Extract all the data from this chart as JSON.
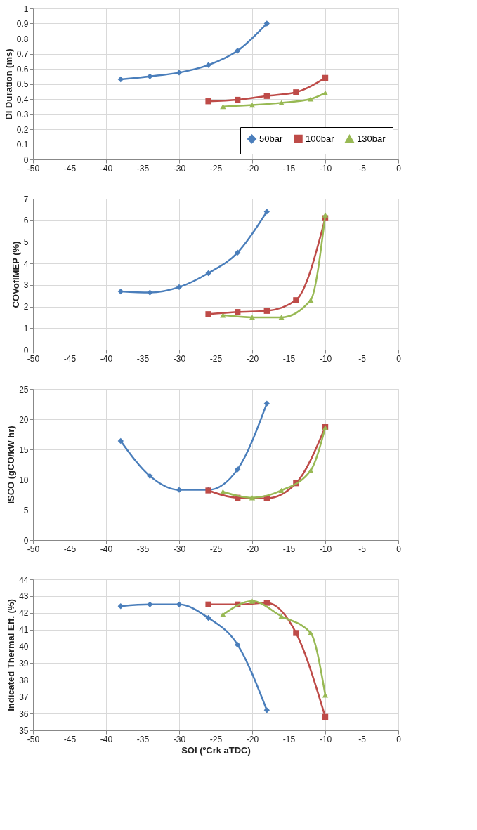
{
  "chart_data": [
    {
      "type": "line",
      "ylabel": "DI Duration (ms)",
      "xlim": [
        -50,
        0
      ],
      "xticks": [
        -50,
        -45,
        -40,
        -35,
        -30,
        -25,
        -20,
        -15,
        -10,
        -5,
        0
      ],
      "ylim": [
        0,
        1
      ],
      "yticks": [
        0,
        0.1,
        0.2,
        0.3,
        0.4,
        0.5,
        0.6,
        0.7,
        0.8,
        0.9,
        1
      ],
      "grid": true,
      "legend": "bottom right",
      "series": [
        {
          "name": "50bar",
          "color": "#4a7ebb",
          "marker": "diamond",
          "x": [
            -38,
            -34,
            -30,
            -26,
            -22,
            -18
          ],
          "values": [
            0.53,
            0.55,
            0.575,
            0.625,
            0.72,
            0.9
          ]
        },
        {
          "name": "100bar",
          "color": "#be4b48",
          "marker": "square",
          "x": [
            -26,
            -22,
            -18,
            -14,
            -10
          ],
          "values": [
            0.385,
            0.395,
            0.42,
            0.445,
            0.54
          ]
        },
        {
          "name": "130bar",
          "color": "#98b954",
          "marker": "triangle",
          "x": [
            -24,
            -20,
            -16,
            -12,
            -10
          ],
          "values": [
            0.35,
            0.36,
            0.375,
            0.4,
            0.44
          ]
        }
      ]
    },
    {
      "type": "line",
      "ylabel": "COVofIMEP (%)",
      "xlim": [
        -50,
        0
      ],
      "xticks": [
        -50,
        -45,
        -40,
        -35,
        -30,
        -25,
        -20,
        -15,
        -10,
        -5,
        0
      ],
      "ylim": [
        0,
        7
      ],
      "yticks": [
        0,
        1,
        2,
        3,
        4,
        5,
        6,
        7
      ],
      "grid": true,
      "series": [
        {
          "color": "#4a7ebb",
          "marker": "diamond",
          "x": [
            -38,
            -34,
            -30,
            -26,
            -22,
            -18
          ],
          "values": [
            2.7,
            2.65,
            2.9,
            3.55,
            4.5,
            6.4
          ]
        },
        {
          "color": "#be4b48",
          "marker": "square",
          "x": [
            -26,
            -22,
            -18,
            -14,
            -10
          ],
          "values": [
            1.65,
            1.75,
            1.8,
            2.3,
            6.1
          ]
        },
        {
          "color": "#98b954",
          "marker": "triangle",
          "x": [
            -24,
            -20,
            -16,
            -12,
            -10
          ],
          "values": [
            1.6,
            1.5,
            1.5,
            2.3,
            6.25
          ]
        }
      ]
    },
    {
      "type": "line",
      "ylabel": "ISCO (gCO/kW hr)",
      "xlim": [
        -50,
        0
      ],
      "xticks": [
        -50,
        -45,
        -40,
        -35,
        -30,
        -25,
        -20,
        -15,
        -10,
        -5,
        0
      ],
      "ylim": [
        0,
        25
      ],
      "yticks": [
        0,
        5,
        10,
        15,
        20,
        25
      ],
      "grid": true,
      "series": [
        {
          "color": "#4a7ebb",
          "marker": "diamond",
          "x": [
            -38,
            -34,
            -30,
            -26,
            -22,
            -18
          ],
          "values": [
            16.4,
            10.6,
            8.3,
            8.3,
            11.7,
            22.6
          ]
        },
        {
          "color": "#be4b48",
          "marker": "square",
          "x": [
            -26,
            -22,
            -18,
            -14,
            -10
          ],
          "values": [
            8.2,
            7.0,
            6.9,
            9.4,
            18.7
          ]
        },
        {
          "color": "#98b954",
          "marker": "triangle",
          "x": [
            -24,
            -20,
            -16,
            -12,
            -10
          ],
          "values": [
            8.0,
            7.0,
            8.2,
            11.5,
            18.6
          ]
        }
      ]
    },
    {
      "type": "line",
      "ylabel": "Indicated Thermal Eff. (%)",
      "xlabel": "SOI (ºCrk aTDC)",
      "xlim": [
        -50,
        0
      ],
      "xticks": [
        -50,
        -45,
        -40,
        -35,
        -30,
        -25,
        -20,
        -15,
        -10,
        -5,
        0
      ],
      "ylim": [
        35,
        44
      ],
      "yticks": [
        35,
        36,
        37,
        38,
        39,
        40,
        41,
        42,
        43,
        44
      ],
      "grid": true,
      "series": [
        {
          "color": "#4a7ebb",
          "marker": "diamond",
          "x": [
            -38,
            -34,
            -30,
            -26,
            -22,
            -18
          ],
          "values": [
            42.4,
            42.5,
            42.5,
            41.7,
            40.1,
            36.2
          ]
        },
        {
          "color": "#be4b48",
          "marker": "square",
          "x": [
            -26,
            -22,
            -18,
            -14,
            -10
          ],
          "values": [
            42.5,
            42.5,
            42.6,
            40.8,
            35.8
          ]
        },
        {
          "color": "#98b954",
          "marker": "triangle",
          "x": [
            -24,
            -20,
            -16,
            -12,
            -10
          ],
          "values": [
            41.9,
            42.7,
            41.8,
            40.8,
            37.1
          ]
        }
      ]
    }
  ]
}
